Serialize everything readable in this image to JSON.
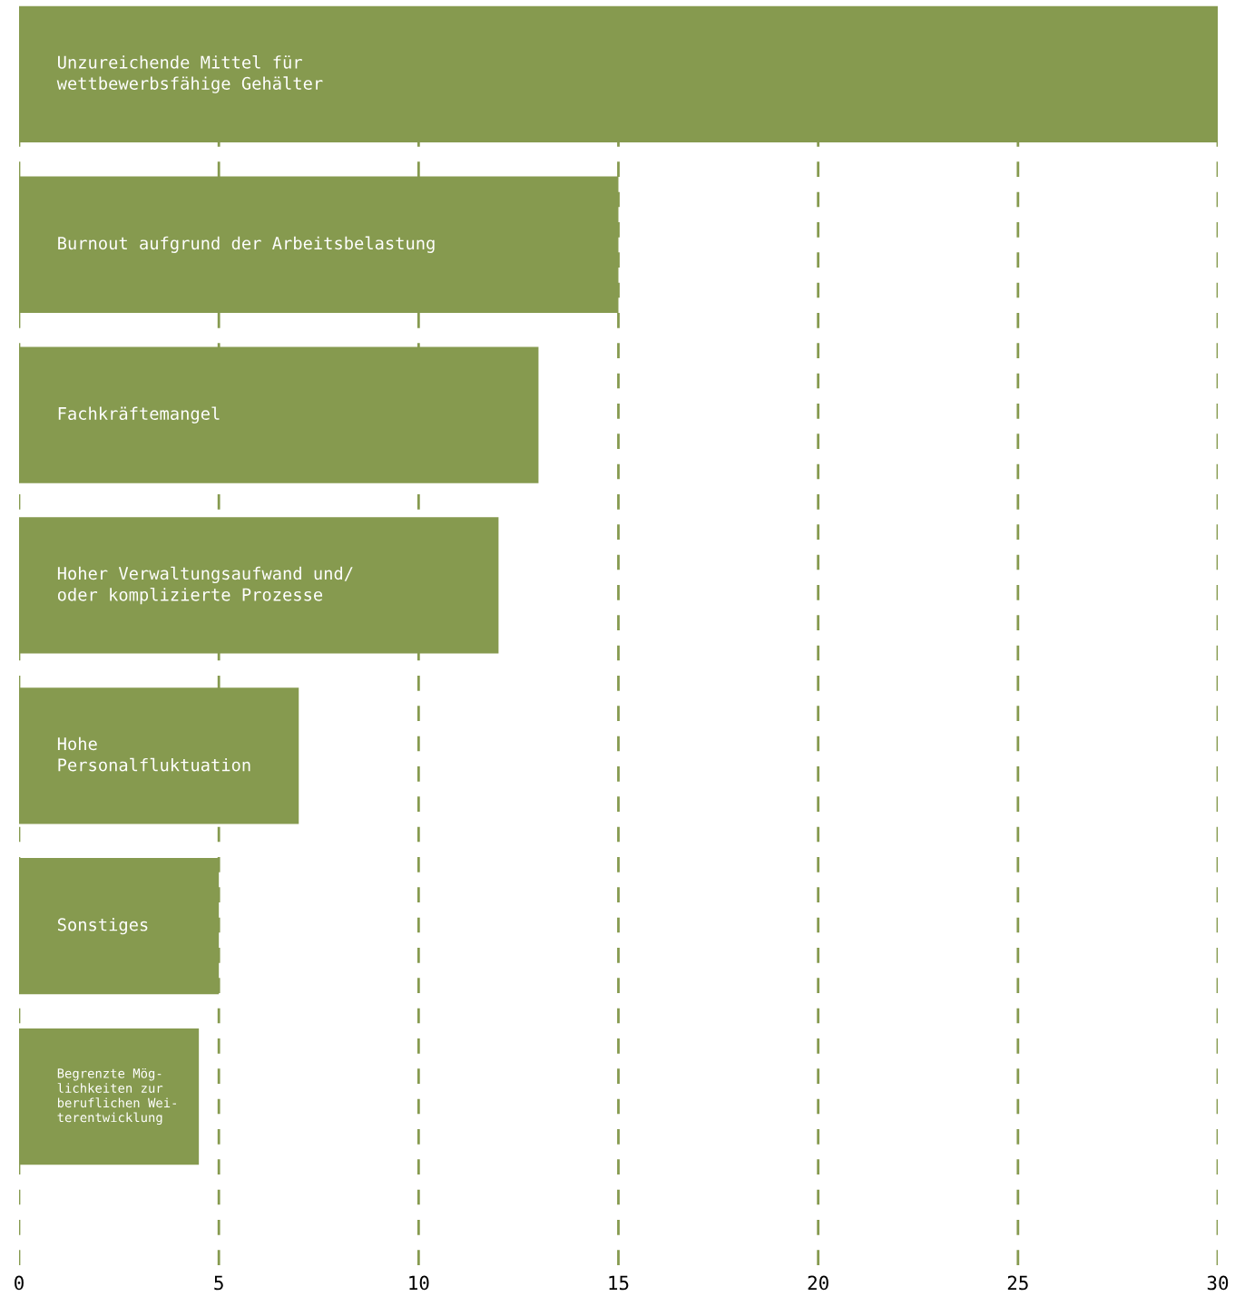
{
  "chart_data": {
    "type": "bar",
    "orientation": "horizontal",
    "categories": [
      "Unzureichende Mittel für\nwettbewerbsfähige Gehälter",
      "Burnout aufgrund der Arbeitsbelastung",
      "Fachkräftemangel",
      "Hoher Verwaltungsaufwand und/\noder komplizierte Prozesse",
      "Hohe\nPersonalfluktuation",
      "Sonstiges",
      "Begrenzte Mög-\nlichkeiten zur\nberuflichen Wei-\nterentwicklung"
    ],
    "values": [
      30,
      15,
      13,
      12,
      7,
      5,
      4.5
    ],
    "color": "#869a4f",
    "xlim": [
      0,
      30
    ],
    "xticks": [
      0,
      5,
      10,
      15,
      20,
      25,
      30
    ],
    "grid": "x",
    "line_style": "dashed",
    "tick_labels": "x"
  }
}
